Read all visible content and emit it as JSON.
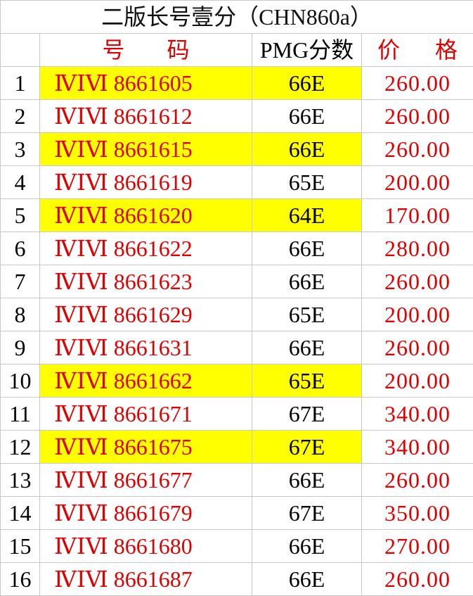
{
  "title": "二版长号壹分（CHN860a）",
  "headers": {
    "number_a": "号",
    "number_b": "码",
    "grade": "PMG分数",
    "price_a": "价",
    "price_b": "格"
  },
  "colors": {
    "highlight": "#ffff00",
    "red_text": "#e00000"
  },
  "rows": [
    {
      "idx": "1",
      "serial": "ⅣⅠⅥ 8661605",
      "grade": "66E",
      "price": "260.00",
      "highlighted": true
    },
    {
      "idx": "2",
      "serial": "ⅣⅠⅥ 8661612",
      "grade": "66E",
      "price": "260.00",
      "highlighted": false
    },
    {
      "idx": "3",
      "serial": "ⅣⅠⅥ 8661615",
      "grade": "66E",
      "price": "260.00",
      "highlighted": true
    },
    {
      "idx": "4",
      "serial": "ⅣⅠⅥ 8661619",
      "grade": "65E",
      "price": "200.00",
      "highlighted": false
    },
    {
      "idx": "5",
      "serial": "ⅣⅠⅥ 8661620",
      "grade": "64E",
      "price": "170.00",
      "highlighted": true
    },
    {
      "idx": "6",
      "serial": "ⅣⅠⅥ 8661622",
      "grade": "66E",
      "price": "280.00",
      "highlighted": false
    },
    {
      "idx": "7",
      "serial": "ⅣⅠⅥ 8661623",
      "grade": "66E",
      "price": "260.00",
      "highlighted": false
    },
    {
      "idx": "8",
      "serial": "ⅣⅠⅥ 8661629",
      "grade": "65E",
      "price": "200.00",
      "highlighted": false
    },
    {
      "idx": "9",
      "serial": "ⅣⅠⅥ 8661631",
      "grade": "66E",
      "price": "260.00",
      "highlighted": false
    },
    {
      "idx": "10",
      "serial": "ⅣⅠⅥ 8661662",
      "grade": "65E",
      "price": "200.00",
      "highlighted": true
    },
    {
      "idx": "11",
      "serial": "ⅣⅠⅥ 8661671",
      "grade": "67E",
      "price": "340.00",
      "highlighted": false
    },
    {
      "idx": "12",
      "serial": "ⅣⅠⅥ 8661675",
      "grade": "67E",
      "price": "340.00",
      "highlighted": true
    },
    {
      "idx": "13",
      "serial": "ⅣⅠⅥ 8661677",
      "grade": "66E",
      "price": "260.00",
      "highlighted": false
    },
    {
      "idx": "14",
      "serial": "ⅣⅠⅥ 8661679",
      "grade": "67E",
      "price": "350.00",
      "highlighted": false
    },
    {
      "idx": "15",
      "serial": "ⅣⅠⅥ 8661680",
      "grade": "66E",
      "price": "270.00",
      "highlighted": false
    },
    {
      "idx": "16",
      "serial": "ⅣⅠⅥ 8661687",
      "grade": "66E",
      "price": "260.00",
      "highlighted": false
    }
  ]
}
